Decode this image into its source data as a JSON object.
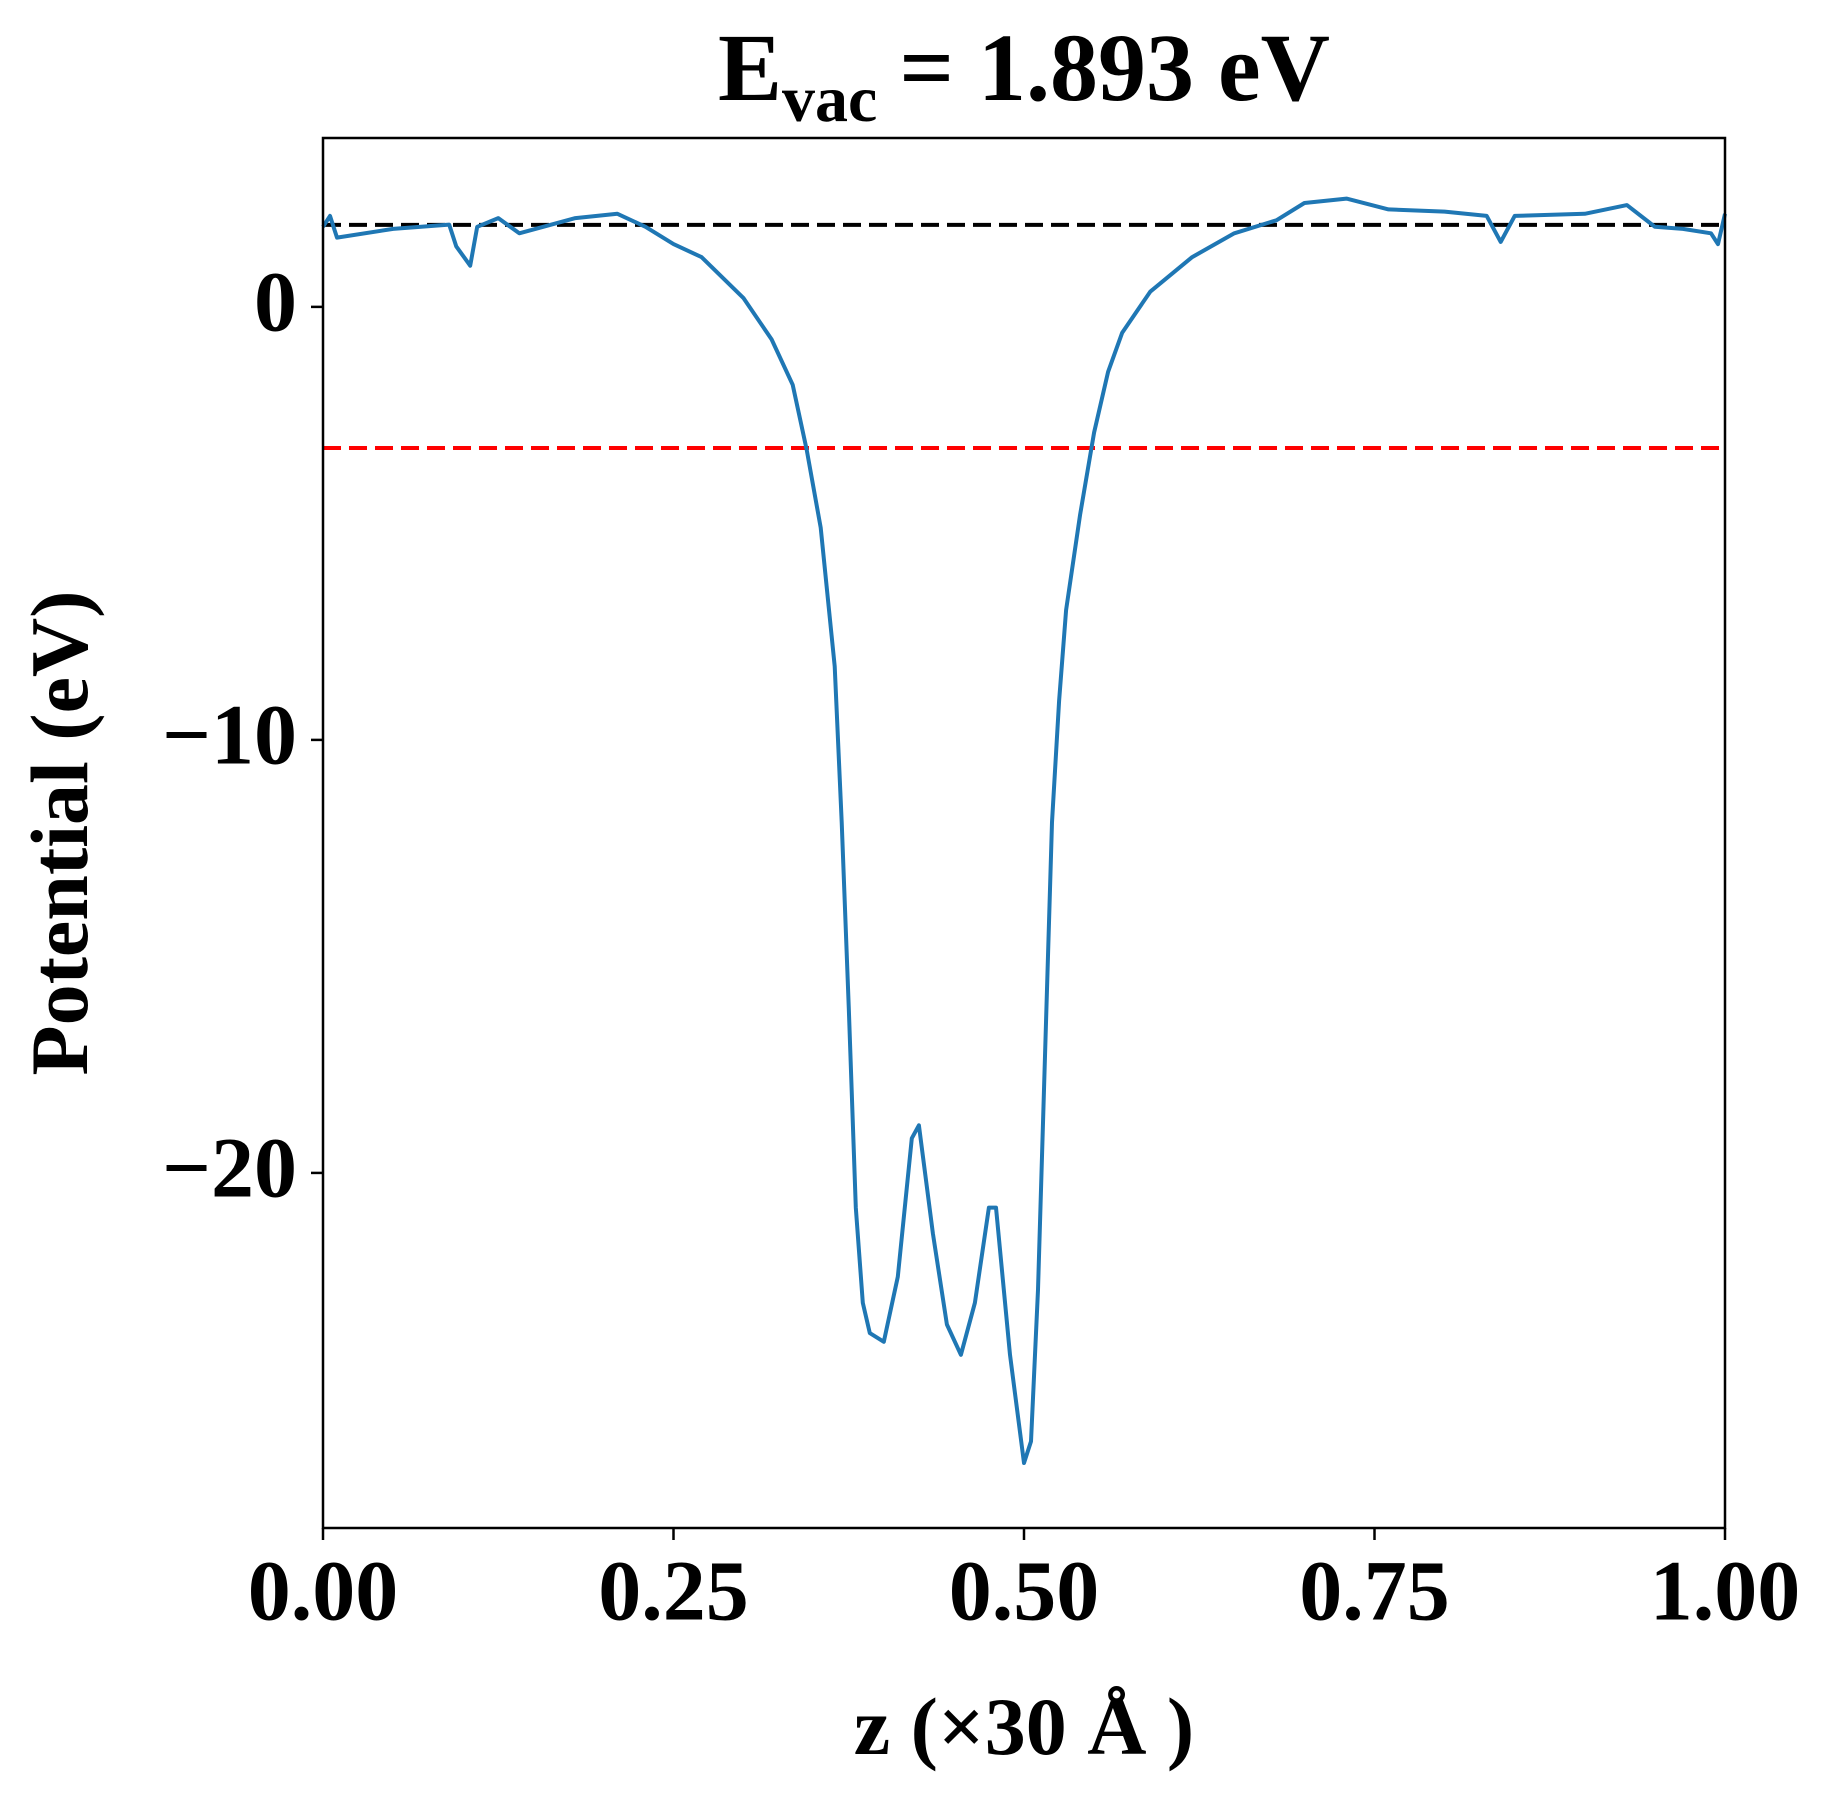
{
  "chart_data": {
    "type": "line",
    "title": [
      "E",
      "vac",
      "= 1.893 eV"
    ],
    "x_label": "z (×30 Å )",
    "y_label": "Potential (eV)",
    "x": [
      0,
      0.005,
      0.01,
      0.05,
      0.09,
      0.095,
      0.105,
      0.11,
      0.125,
      0.14,
      0.18,
      0.21,
      0.23,
      0.25,
      0.27,
      0.3,
      0.32,
      0.335,
      0.345,
      0.355,
      0.365,
      0.37,
      0.375,
      0.38,
      0.385,
      0.39,
      0.4,
      0.41,
      0.42,
      0.425,
      0.435,
      0.445,
      0.455,
      0.465,
      0.475,
      0.48,
      0.49,
      0.5,
      0.505,
      0.51,
      0.515,
      0.52,
      0.525,
      0.53,
      0.54,
      0.55,
      0.56,
      0.57,
      0.59,
      0.62,
      0.65,
      0.68,
      0.7,
      0.73,
      0.76,
      0.8,
      0.83,
      0.84,
      0.85,
      0.9,
      0.93,
      0.95,
      0.97,
      0.99,
      0.995,
      1.0
    ],
    "series": [
      {
        "color": "#1f77b4",
        "values": [
          1.85,
          2.1,
          1.6,
          1.8,
          1.9,
          1.4,
          0.95,
          1.85,
          2.05,
          1.7,
          2.05,
          2.15,
          1.85,
          1.45,
          1.15,
          0.2,
          -0.75,
          -1.8,
          -3.3,
          -5.1,
          -8.3,
          -11.9,
          -16.2,
          -20.8,
          -23,
          -23.7,
          -23.9,
          -22.4,
          -19.2,
          -18.9,
          -21.4,
          -23.5,
          -24.2,
          -23,
          -20.8,
          -20.8,
          -24.2,
          -26.7,
          -26.2,
          -22.7,
          -17.3,
          -11.9,
          -9.1,
          -7,
          -4.8,
          -2.9,
          -1.5,
          -0.6,
          0.35,
          1.15,
          1.7,
          2,
          2.4,
          2.5,
          2.25,
          2.2,
          2.1,
          1.5,
          2.1,
          2.15,
          2.35,
          1.85,
          1.8,
          1.7,
          1.45,
          2.15
        ]
      }
    ],
    "hlines": [
      {
        "y": 1.893,
        "color": "#000000"
      },
      {
        "y": -3.26,
        "color": "#ff0000"
      }
    ],
    "xlim": [
      0,
      1
    ],
    "ylim": [
      -28.2,
      3.9
    ],
    "xticks": [
      {
        "value": 0,
        "label": "0.00"
      },
      {
        "value": 0.25,
        "label": "0.25"
      },
      {
        "value": 0.5,
        "label": "0.50"
      },
      {
        "value": 0.75,
        "label": "0.75"
      },
      {
        "value": 1,
        "label": "1.00"
      }
    ],
    "yticks": [
      {
        "value": -20,
        "label": "−20"
      },
      {
        "value": -10,
        "label": "−10"
      },
      0
    ],
    "grid": false
  }
}
